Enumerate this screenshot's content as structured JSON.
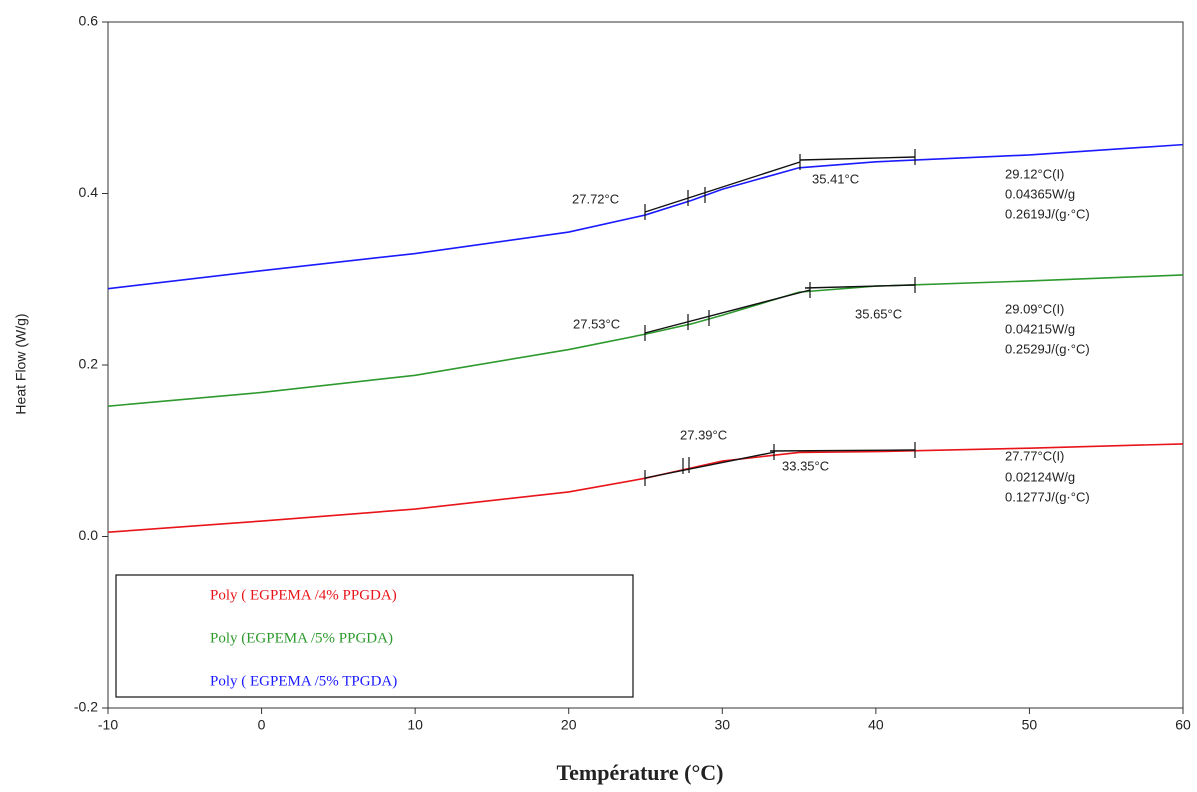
{
  "chart_data": {
    "type": "line",
    "x_label": "Température (°C)",
    "y_label": "Heat Flow (W/g)",
    "x": [
      -10,
      0,
      10,
      20,
      25,
      28,
      30,
      35,
      40,
      50,
      60
    ],
    "series": [
      {
        "name": "Poly ( EGPEMA /4% PPGDA)",
        "color": "#e8141a",
        "values": [
          0.005,
          0.018,
          0.032,
          0.052,
          0.068,
          0.08,
          0.088,
          0.098,
          0.099,
          0.103,
          0.108
        ]
      },
      {
        "name": "Poly  (EGPEMA /5% PPGDA)",
        "color": "#2e9a2e",
        "values": [
          0.152,
          0.168,
          0.188,
          0.218,
          0.236,
          0.248,
          0.258,
          0.285,
          0.292,
          0.298,
          0.305
        ]
      },
      {
        "name": "Poly   ( EGPEMA /5% TPGDA)",
        "color": "#1a1aff",
        "values": [
          0.289,
          0.31,
          0.33,
          0.355,
          0.375,
          0.392,
          0.405,
          0.43,
          0.437,
          0.445,
          0.457
        ]
      }
    ],
    "annotations": [
      "27.72°C",
      "35.41°C",
      "29.12°C(I)",
      "0.04365W/g",
      "0.2619J/(g·°C)",
      "27.53°C",
      "35.65°C",
      "29.09°C(I)",
      "0.04215W/g",
      "0.2529J/(g·°C)",
      "27.39°C",
      "33.35°C",
      "27.77°C(I)",
      "0.02124W/g",
      "0.1277J/(g·°C)"
    ],
    "xlim": [
      -10,
      60
    ],
    "xticks": [
      -10,
      0,
      10,
      20,
      30,
      40,
      50,
      60
    ],
    "ylim": [
      -0.2,
      0.6
    ],
    "yticks": [
      -0.2,
      {
        "value": 0,
        "label": "0.0"
      },
      0.2,
      0.4,
      0.6
    ],
    "grid": false,
    "legend": "lower-left"
  }
}
